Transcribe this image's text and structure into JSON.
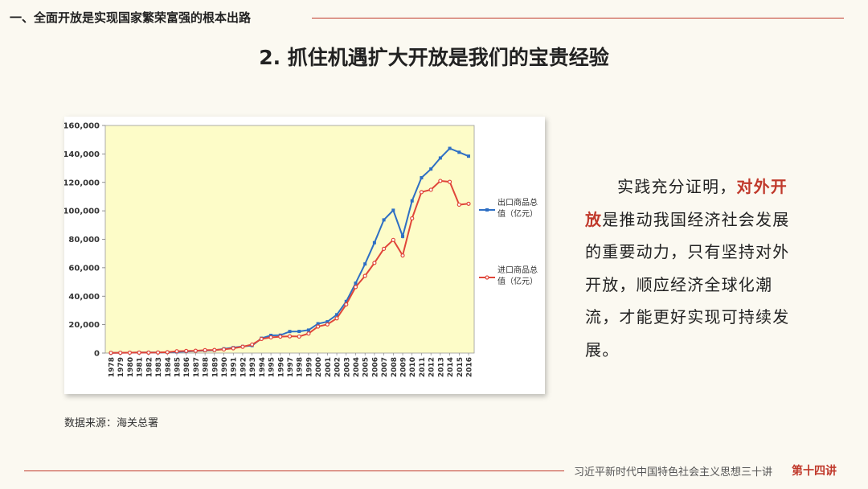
{
  "header": {
    "section_title": "一、全面开放是实现国家繁荣富强的根本出路",
    "main_title": "2. 抓住机遇扩大开放是我们的宝贵经验"
  },
  "body": {
    "text_before": "实践充分证明，",
    "text_highlight": "对外开放",
    "text_after": "是推动我国经济社会发展的重要动力，只有坚持对外开放，顺应经济全球化潮流，才能更好实现可持续发展。"
  },
  "source": "数据来源：海关总署",
  "footer": {
    "text": "习近平新时代中国特色社会主义思想三十讲",
    "lecture": "第十四讲"
  },
  "colors": {
    "accent": "#c0392b",
    "export_line": "#2e6fc4",
    "import_line": "#e0463a",
    "plot_bg": "#fdfcc8"
  },
  "chart_data": {
    "type": "line",
    "x": [
      "1978",
      "1979",
      "1980",
      "1981",
      "1982",
      "1983",
      "1984",
      "1985",
      "1986",
      "1987",
      "1988",
      "1989",
      "1990",
      "1991",
      "1992",
      "1993",
      "1994",
      "1995",
      "1996",
      "1997",
      "1998",
      "1999",
      "2000",
      "2001",
      "2002",
      "2003",
      "2004",
      "2005",
      "2006",
      "2007",
      "2008",
      "2009",
      "2010",
      "2011",
      "2012",
      "2013",
      "2014",
      "2015",
      "2016"
    ],
    "ylim": [
      0,
      160000
    ],
    "yticks": [
      "0",
      "20,000",
      "40,000",
      "60,000",
      "80,000",
      "100,000",
      "120,000",
      "140,000",
      "160,000"
    ],
    "grid": false,
    "legend_position": "right",
    "series": [
      {
        "name_line1": "出口商品总",
        "name_line2": "值（亿元）",
        "values": [
          168,
          212,
          271,
          368,
          414,
          438,
          581,
          809,
          1082,
          1470,
          1767,
          1956,
          2986,
          3827,
          4676,
          5285,
          10422,
          12452,
          12576,
          15160,
          15224,
          16160,
          20634,
          22024,
          26948,
          36288,
          49103,
          62648,
          77597,
          93627,
          100395,
          82030,
          107023,
          123241,
          129359,
          137131,
          143884,
          141167,
          138419
        ]
      },
      {
        "name_line1": "进口商品总",
        "name_line2": "值（亿元）",
        "values": [
          187,
          243,
          299,
          368,
          358,
          422,
          620,
          1258,
          1498,
          1614,
          2055,
          2200,
          2574,
          3399,
          4443,
          5986,
          9960,
          11048,
          11557,
          11807,
          11626,
          13736,
          18639,
          20159,
          24430,
          34196,
          46436,
          54274,
          63377,
          73301,
          79527,
          68618,
          94700,
          113161,
          114801,
          121038,
          120358,
          104336,
          104967
        ]
      }
    ]
  }
}
